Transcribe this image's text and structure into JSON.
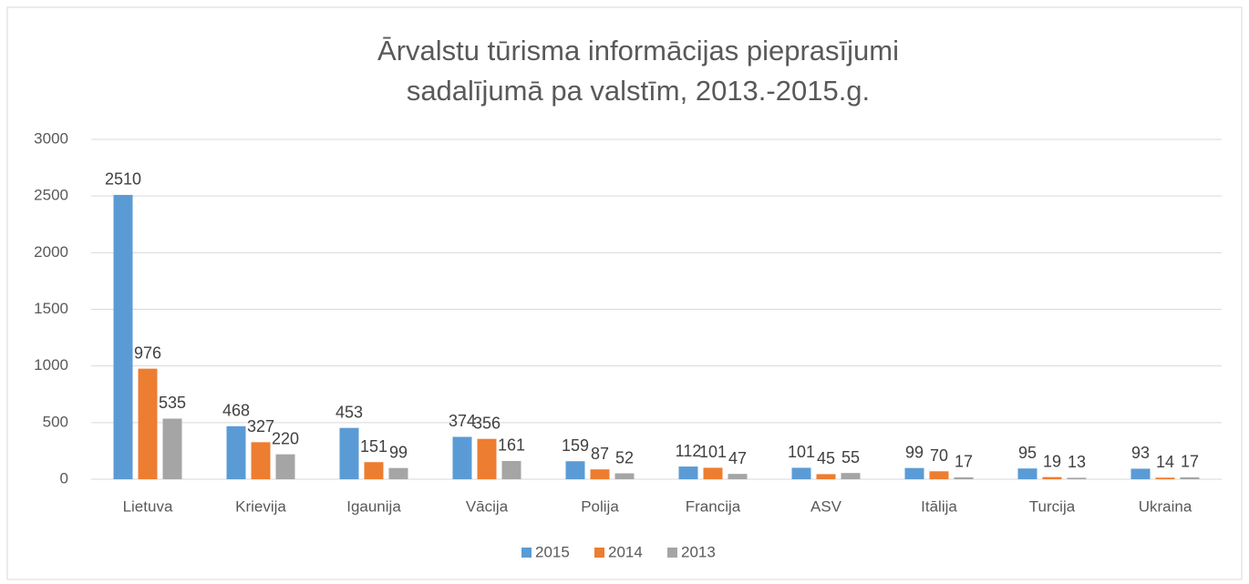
{
  "chart_data": {
    "type": "bar",
    "title": [
      "Ārvalstu tūrisma informācijas pieprasījumi",
      "sadalījumā pa valstīm, 2013.-2015.g."
    ],
    "categories": [
      "Lietuva",
      "Krievija",
      "Igaunija",
      "Vācija",
      "Polija",
      "Francija",
      "ASV",
      "Itālija",
      "Turcija",
      "Ukraina"
    ],
    "series": [
      {
        "name": "2015",
        "color": "#5b9bd5",
        "values": [
          2510,
          468,
          453,
          374,
          159,
          112,
          101,
          99,
          95,
          93
        ]
      },
      {
        "name": "2014",
        "color": "#ed7d31",
        "values": [
          976,
          327,
          151,
          356,
          87,
          101,
          45,
          70,
          19,
          14
        ]
      },
      {
        "name": "2013",
        "color": "#a5a5a5",
        "values": [
          535,
          220,
          99,
          161,
          52,
          47,
          55,
          17,
          13,
          17
        ]
      }
    ],
    "ylim": [
      0,
      3000
    ],
    "yticks": [
      0,
      500,
      1000,
      1500,
      2000,
      2500,
      3000
    ],
    "grid": true,
    "legend": "bottom"
  }
}
